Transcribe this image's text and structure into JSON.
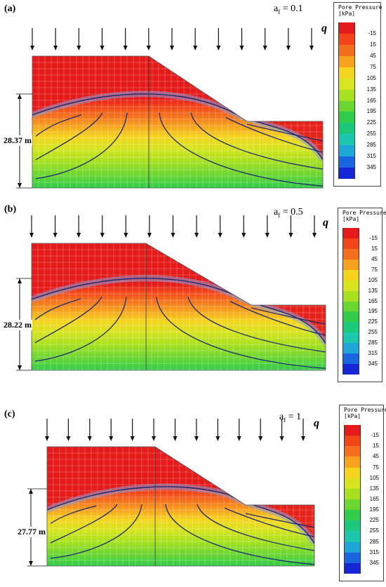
{
  "colors": {
    "scale": [
      "#e51a1a",
      "#f2441a",
      "#f46f1d",
      "#f7a21e",
      "#f5d41f",
      "#d7e41f",
      "#a6e01f",
      "#6bd632",
      "#31cd4a",
      "#1cc97c",
      "#1dc7ad",
      "#1fa6d8",
      "#1a66e0",
      "#1526d6"
    ],
    "streamline": "#1e2a6e",
    "mesh": "#ffffff"
  },
  "legend": {
    "title": "Pore Pressure\n[kPa]",
    "ticks": [
      "-15",
      "15",
      "45",
      "75",
      "105",
      "135",
      "165",
      "195",
      "225",
      "255",
      "285",
      "315",
      "345"
    ]
  },
  "load_symbol": "q",
  "panels": [
    {
      "label": "(a)",
      "af_text": "a",
      "af_sub": "f",
      "af_value": " = 0.1",
      "height_label": "28.37 m"
    },
    {
      "label": "(b)",
      "af_text": "a",
      "af_sub": "f",
      "af_value": " = 0.5",
      "height_label": "28.22 m"
    },
    {
      "label": "(c)",
      "af_text": "a",
      "af_sub": "f",
      "af_value": " = 1",
      "height_label": "27.77 m"
    }
  ]
}
